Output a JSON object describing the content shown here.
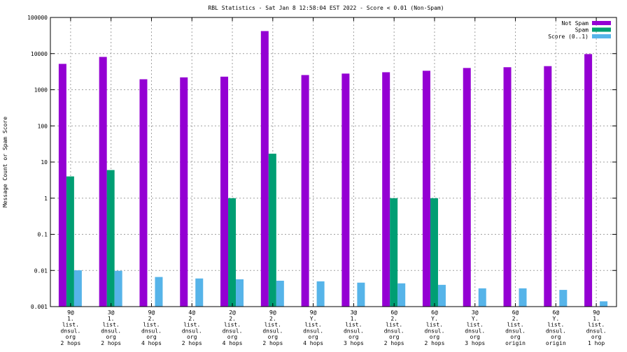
{
  "chart_data": {
    "type": "bar",
    "title": "RBL Statistics - Sat Jan  8 12:58:04 EST 2022 - Score < 0.01 (Non-Spam)",
    "xlabel": "",
    "ylabel": "Message Count or Spam Score",
    "y_scale": "log",
    "ylim": [
      0.001,
      100000
    ],
    "y_ticks": [
      "0.001",
      "0.01",
      "0.1",
      "1",
      "10",
      "100",
      "1000",
      "10000",
      "100000"
    ],
    "grid": true,
    "legend_position": "top-right",
    "categories": [
      [
        "9@",
        "1.",
        "list.",
        "dnsul.",
        "org",
        "2 hops"
      ],
      [
        "3@",
        "1.",
        "list.",
        "dnsul.",
        "org",
        "2 hops"
      ],
      [
        "9@",
        "2.",
        "list.",
        "dnsul.",
        "org",
        "4 hops"
      ],
      [
        "4@",
        "2.",
        "list.",
        "dnsul.",
        "org",
        "2 hops"
      ],
      [
        "2@",
        "2.",
        "list.",
        "dnsul.",
        "org",
        "4 hops"
      ],
      [
        "9@",
        "2.",
        "list.",
        "dnsul.",
        "org",
        "2 hops"
      ],
      [
        "9@",
        "Y.",
        "list.",
        "dnsul.",
        "org",
        "4 hops"
      ],
      [
        "3@",
        "1.",
        "list.",
        "dnsul.",
        "org",
        "3 hops"
      ],
      [
        "6@",
        "2.",
        "list.",
        "dnsul.",
        "org",
        "2 hops"
      ],
      [
        "6@",
        "Y.",
        "list.",
        "dnsul.",
        "org",
        "2 hops"
      ],
      [
        "3@",
        "Y.",
        "list.",
        "dnsul.",
        "org",
        "3 hops"
      ],
      [
        "6@",
        "2.",
        "list.",
        "dnsul.",
        "org",
        "origin"
      ],
      [
        "6@",
        "Y.",
        "list.",
        "dnsul.",
        "org",
        "origin"
      ],
      [
        "9@",
        "1.",
        "list.",
        "dnsul.",
        "org",
        "1 hop"
      ]
    ],
    "series": [
      {
        "name": "Not Spam",
        "color": "#9400d3",
        "values": [
          5200,
          8100,
          1950,
          2200,
          2300,
          42000,
          2550,
          2800,
          3050,
          3350,
          4000,
          4200,
          4500,
          9700
        ]
      },
      {
        "name": "Spam",
        "color": "#009e73",
        "values": [
          4,
          6,
          0,
          0,
          1,
          17,
          0,
          0,
          1,
          1,
          0,
          0,
          0,
          0
        ]
      },
      {
        "name": "Score (0..1)",
        "color": "#56b4e9",
        "values": [
          0.0101,
          0.0098,
          0.0066,
          0.006,
          0.0057,
          0.0052,
          0.005,
          0.0046,
          0.0044,
          0.004,
          0.0032,
          0.0032,
          0.0029,
          0.0014
        ]
      }
    ]
  }
}
